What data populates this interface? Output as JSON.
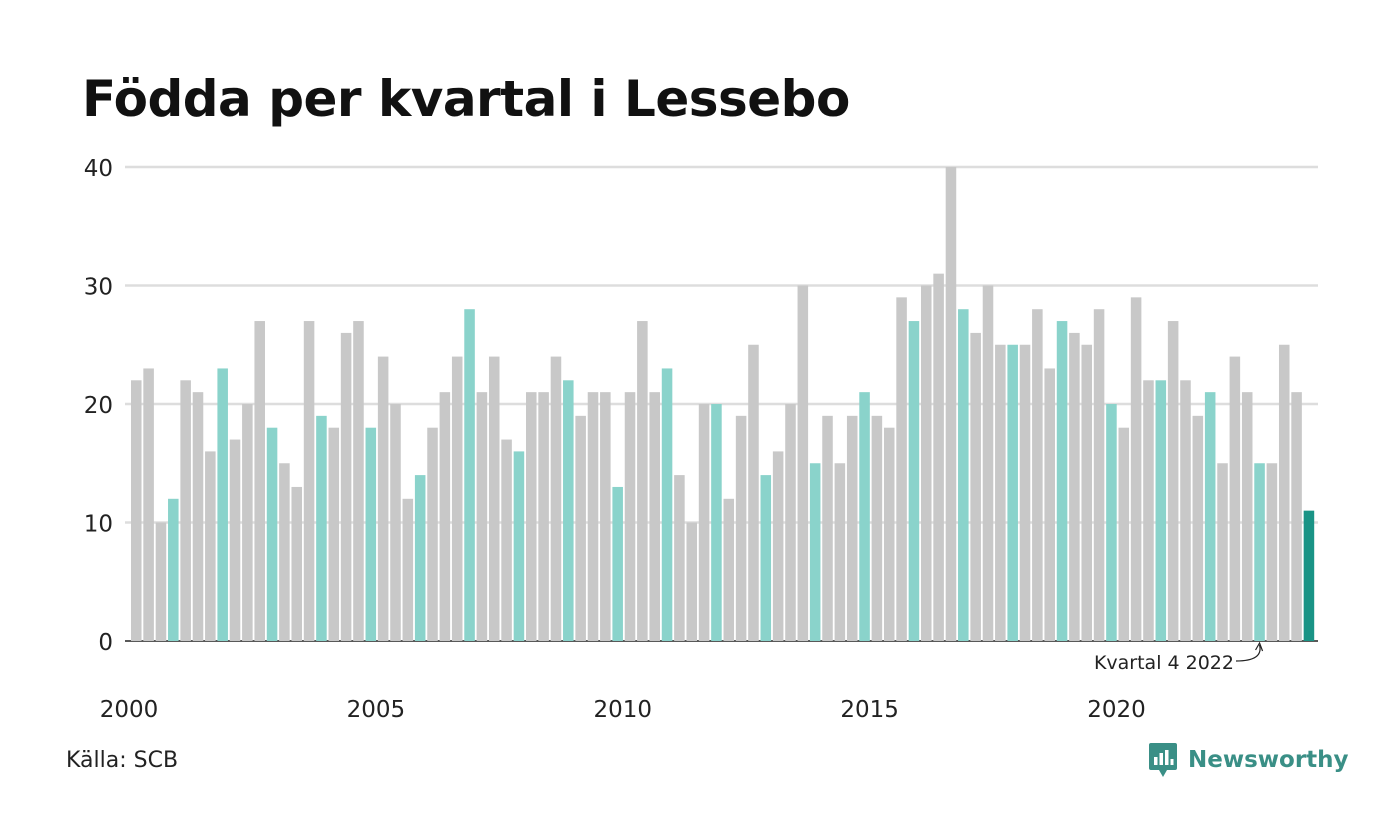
{
  "chart_data": {
    "type": "bar",
    "title": "Födda per kvartal i Lessebo",
    "ylim": [
      0,
      40
    ],
    "yticks": [
      0,
      10,
      20,
      30,
      40
    ],
    "xticks": [
      "2000",
      "2005",
      "2010",
      "2015",
      "2020"
    ],
    "grid": true,
    "annotation": "Kvartal 4 2022",
    "source": "Källa: SCB",
    "colors": {
      "default": "#c8c8c8",
      "same_quarter": "#8ad3cb",
      "latest": "#1a9486",
      "axis": "#222222",
      "grid": "#dddddd"
    },
    "values": [
      22,
      23,
      10,
      12,
      22,
      21,
      16,
      23,
      17,
      20,
      27,
      18,
      15,
      13,
      27,
      19,
      18,
      26,
      27,
      18,
      24,
      20,
      12,
      14,
      18,
      21,
      24,
      28,
      21,
      24,
      17,
      16,
      21,
      21,
      24,
      22,
      19,
      21,
      21,
      13,
      21,
      27,
      21,
      23,
      14,
      10,
      20,
      20,
      12,
      19,
      25,
      14,
      16,
      20,
      30,
      15,
      19,
      15,
      19,
      21,
      19,
      18,
      29,
      27,
      30,
      31,
      40,
      28,
      26,
      30,
      25,
      25,
      25,
      28,
      23,
      27,
      26,
      25,
      28,
      20,
      18,
      29,
      22,
      22,
      27,
      22,
      19,
      21,
      15,
      24,
      21,
      15,
      15,
      25,
      21,
      11
    ]
  },
  "brand": {
    "name": "Newsworthy",
    "logo_icon": "bar-chart-speech-bubble-icon"
  }
}
